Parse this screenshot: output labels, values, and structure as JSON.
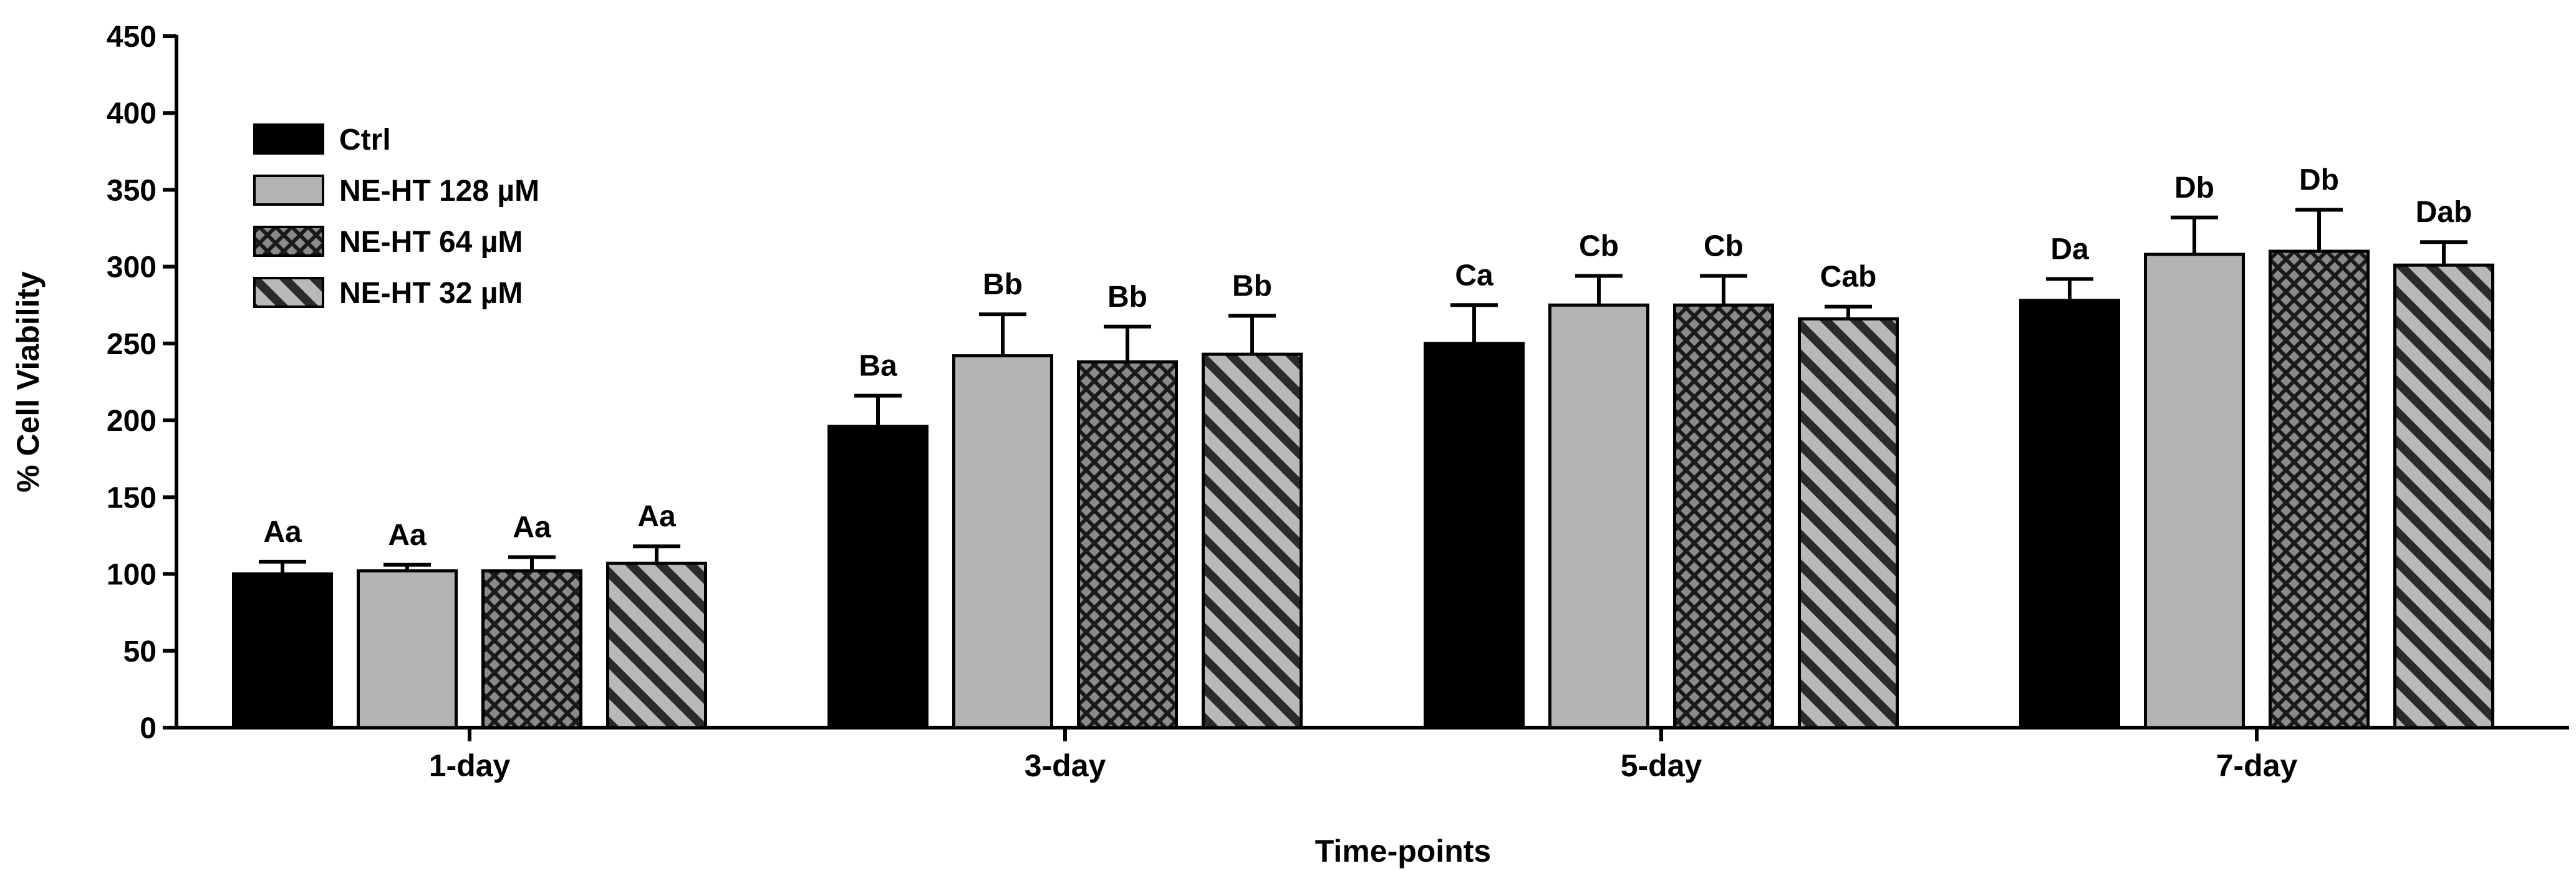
{
  "chart_data": {
    "type": "bar",
    "title": "",
    "xlabel": "Time-points",
    "ylabel": "% Cell Viability",
    "ylim": [
      0,
      450
    ],
    "yticks": [
      0,
      50,
      100,
      150,
      200,
      250,
      300,
      350,
      400,
      450
    ],
    "grid": false,
    "legend_position": "top-left",
    "categories": [
      "1-day",
      "3-day",
      "5-day",
      "7-day"
    ],
    "series": [
      {
        "name": "Ctrl",
        "pattern": "solid-black",
        "color": "#000000",
        "values": [
          100,
          196,
          250,
          278
        ],
        "errors": [
          8,
          20,
          25,
          14
        ],
        "labels": [
          "Aa",
          "Ba",
          "Ca",
          "Da"
        ]
      },
      {
        "name": "NE-HT 128 µM",
        "pattern": "solid-gray",
        "color": "#b3b3b3",
        "values": [
          102,
          242,
          275,
          308
        ],
        "errors": [
          4,
          27,
          19,
          24
        ],
        "labels": [
          "Aa",
          "Bb",
          "Cb",
          "Db"
        ]
      },
      {
        "name": "NE-HT 64 µM",
        "pattern": "crosshatch",
        "color": "#808080",
        "values": [
          102,
          238,
          275,
          310
        ],
        "errors": [
          9,
          23,
          19,
          27
        ],
        "labels": [
          "Aa",
          "Bb",
          "Cb",
          "Db"
        ]
      },
      {
        "name": "NE-HT 32 µM",
        "pattern": "diagonal-stripes",
        "color": "#808080",
        "values": [
          107,
          243,
          266,
          301
        ],
        "errors": [
          11,
          25,
          8,
          15
        ],
        "labels": [
          "Aa",
          "Bb",
          "Cab",
          "Dab"
        ]
      }
    ]
  }
}
